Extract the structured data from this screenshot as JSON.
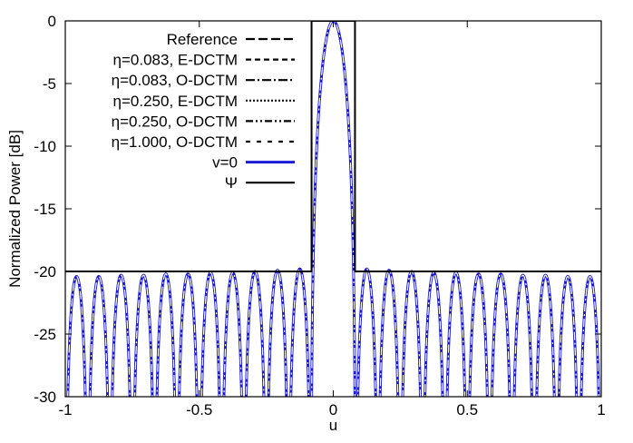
{
  "chart_data": {
    "type": "line",
    "title": "",
    "xlabel": "u",
    "ylabel": "Normalized Power [dB]",
    "xlim": [
      -1,
      1
    ],
    "ylim": [
      -30,
      0
    ],
    "xticks": [
      "-1",
      "-0.5",
      "0",
      "0.5",
      "1"
    ],
    "yticks": [
      "0",
      "-5",
      "-10",
      "-15",
      "-20",
      "-25",
      "-30"
    ],
    "grid": false,
    "legend_position": "top-left",
    "mainlobe_half_width": 0.081,
    "sidelobe_spacing": 0.0833,
    "series": [
      {
        "name": "Reference",
        "color": "#000000",
        "dash": "dashed-long"
      },
      {
        "name": "η=0.083, E-DCTM",
        "color": "#000000",
        "dash": "dashed"
      },
      {
        "name": "η=0.083, O-DCTM",
        "color": "#000000",
        "dash": "dash-dot"
      },
      {
        "name": "η=0.250, E-DCTM",
        "color": "#000000",
        "dash": "dotted"
      },
      {
        "name": "η=0.250, O-DCTM",
        "color": "#000000",
        "dash": "dash-dot-dot"
      },
      {
        "name": "η=1.000, O-DCTM",
        "color": "#000000",
        "dash": "dashed-short"
      },
      {
        "name": "v=0",
        "color": "#1a1ad6",
        "dash": "solid"
      },
      {
        "name": "Ψ",
        "color": "#000000",
        "dash": "solid",
        "x": [
          -1,
          -0.081,
          -0.081,
          0.081,
          0.081,
          1
        ],
        "y": [
          -20,
          -20,
          0,
          0,
          -20,
          -20
        ]
      }
    ],
    "sidelobe_peaks": [
      {
        "x": -0.958,
        "y": -20.4
      },
      {
        "x": -0.875,
        "y": -20.4
      },
      {
        "x": -0.792,
        "y": -20.3
      },
      {
        "x": -0.708,
        "y": -20.3
      },
      {
        "x": -0.625,
        "y": -20.2
      },
      {
        "x": -0.542,
        "y": -20.2
      },
      {
        "x": -0.458,
        "y": -20.1
      },
      {
        "x": -0.375,
        "y": -20.1
      },
      {
        "x": -0.292,
        "y": -20.0
      },
      {
        "x": -0.208,
        "y": -19.9
      },
      {
        "x": -0.125,
        "y": -19.8
      },
      {
        "x": 0.125,
        "y": -19.8
      },
      {
        "x": 0.208,
        "y": -19.9
      },
      {
        "x": 0.292,
        "y": -20.0
      },
      {
        "x": 0.375,
        "y": -20.1
      },
      {
        "x": 0.458,
        "y": -20.1
      },
      {
        "x": 0.542,
        "y": -20.2
      },
      {
        "x": 0.625,
        "y": -20.2
      },
      {
        "x": 0.708,
        "y": -20.3
      },
      {
        "x": 0.792,
        "y": -20.3
      },
      {
        "x": 0.875,
        "y": -20.4
      },
      {
        "x": 0.958,
        "y": -20.4
      }
    ]
  }
}
